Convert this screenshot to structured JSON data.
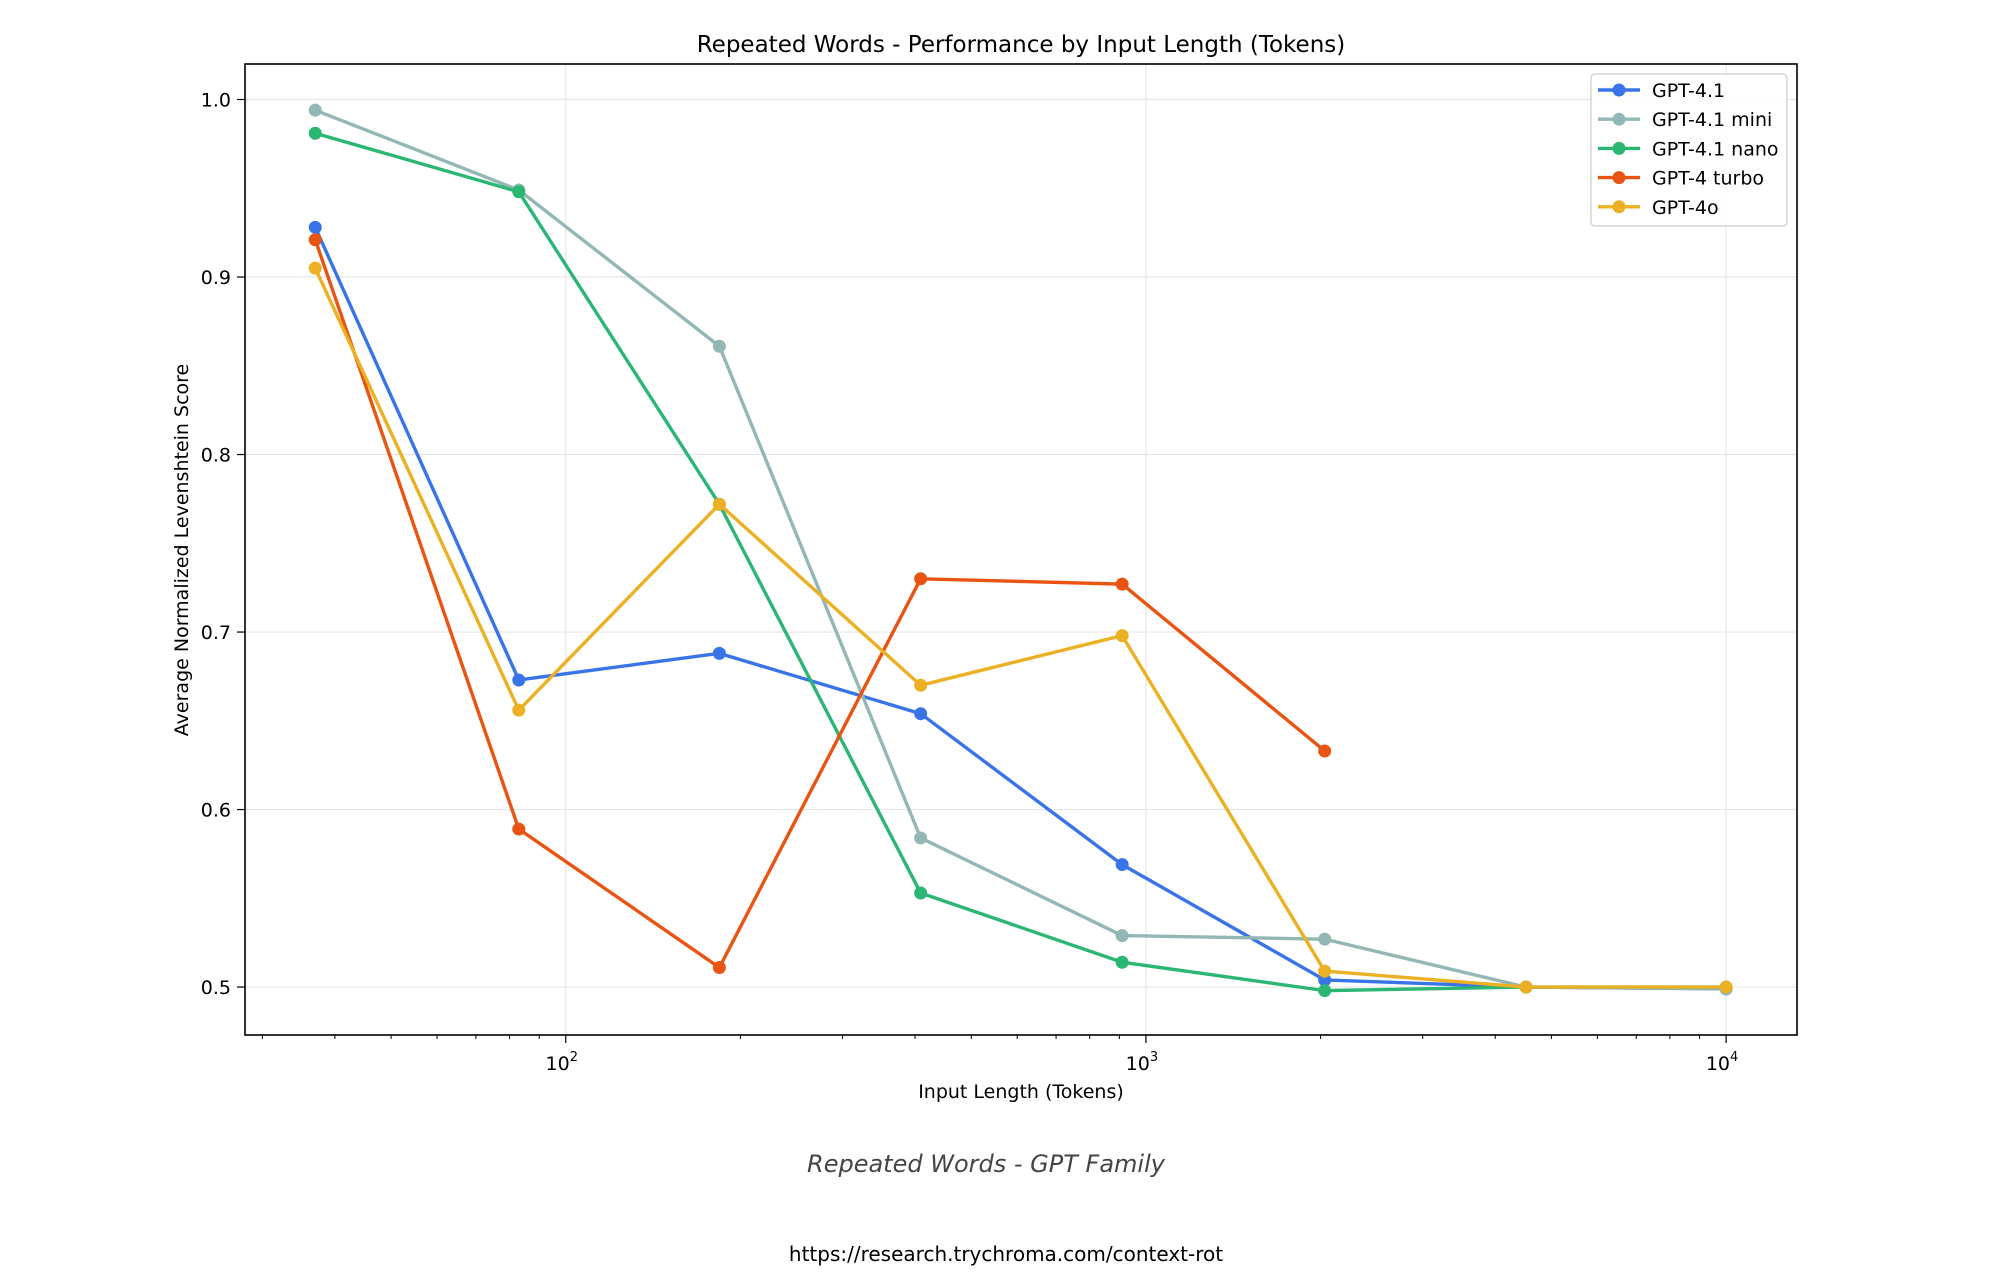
{
  "chart_data": {
    "type": "line",
    "title": "Repeated Words - Performance by Input Length (Tokens)",
    "xlabel": "Input Length (Tokens)",
    "ylabel": "Average Normalized Levenshtein Score",
    "xscale": "log",
    "xlim": [
      28,
      13250
    ],
    "ylim": [
      0.473,
      1.02
    ],
    "grid": true,
    "legend_position": "top-right",
    "x_ticks": [
      {
        "value": 100,
        "base": "10",
        "exp": "2"
      },
      {
        "value": 1000,
        "base": "10",
        "exp": "3"
      },
      {
        "value": 10000,
        "base": "10",
        "exp": "4"
      }
    ],
    "y_ticks": [
      "0.5",
      "0.6",
      "0.7",
      "0.8",
      "0.9",
      "1.0"
    ],
    "x": [
      37,
      83,
      184,
      409,
      910,
      2033,
      4520,
      10000
    ],
    "series": [
      {
        "name": "GPT-4.1",
        "color": "#3874e8",
        "values": [
          0.928,
          0.673,
          0.688,
          0.654,
          0.569,
          0.504,
          0.5,
          0.499
        ]
      },
      {
        "name": "GPT-4.1 mini",
        "color": "#92b7b5",
        "values": [
          0.994,
          0.949,
          0.861,
          0.584,
          0.529,
          0.527,
          0.5,
          0.499
        ]
      },
      {
        "name": "GPT-4.1 nano",
        "color": "#2bb673",
        "values": [
          0.981,
          0.948,
          0.772,
          0.553,
          0.514,
          0.498,
          0.5,
          0.5
        ]
      },
      {
        "name": "GPT-4 turbo",
        "color": "#ea5412",
        "values": [
          0.921,
          0.589,
          0.511,
          0.73,
          0.727,
          0.633,
          null,
          null
        ]
      },
      {
        "name": "GPT-4o",
        "color": "#ecb024",
        "values": [
          0.905,
          0.656,
          0.772,
          0.67,
          0.698,
          0.509,
          0.5,
          0.5
        ]
      }
    ]
  },
  "caption": "Repeated Words - GPT Family",
  "source_url": "https://research.trychroma.com/context-rot"
}
